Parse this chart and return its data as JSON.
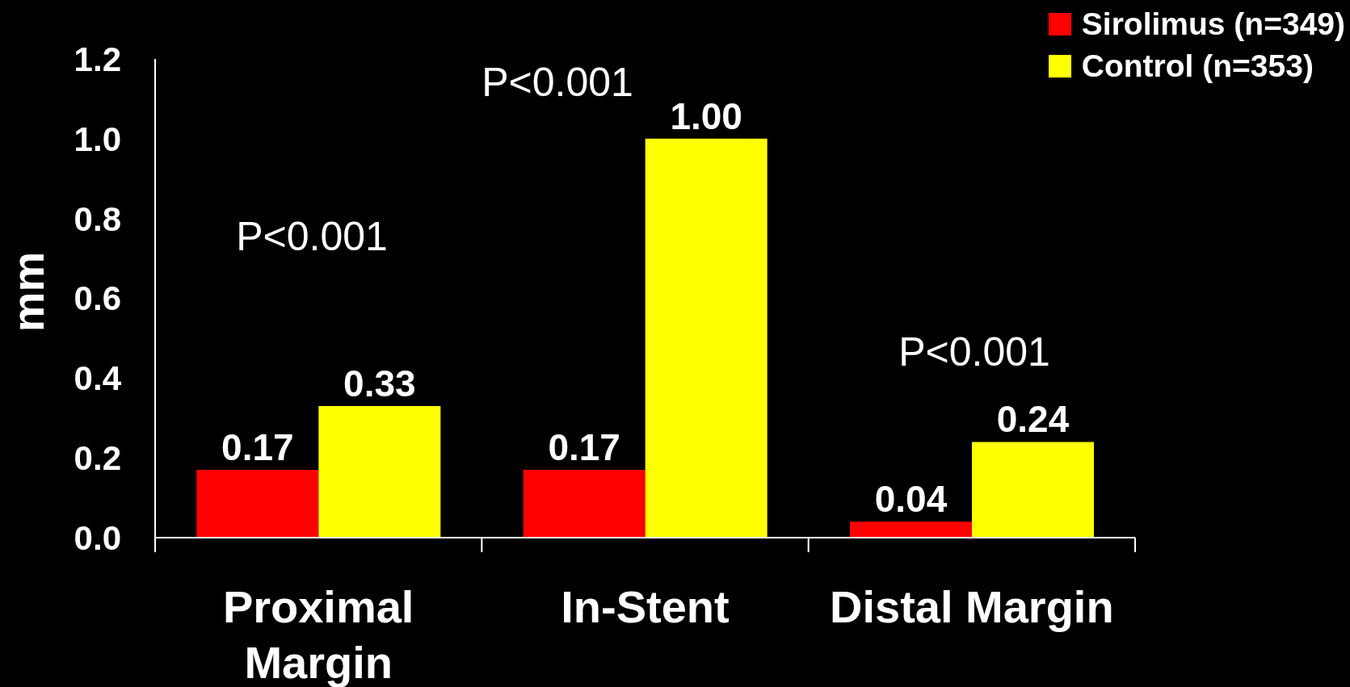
{
  "chart_data": {
    "type": "bar",
    "ylabel": "mm",
    "categories": [
      "Proximal Margin",
      "In-Stent",
      "Distal Margin"
    ],
    "series": [
      {
        "name": "Sirolimus (n=349)",
        "color": "#ff0000",
        "values": [
          0.17,
          0.17,
          0.04
        ],
        "value_labels": [
          "0.17",
          "0.17",
          "0.04"
        ]
      },
      {
        "name": "Control (n=353)",
        "color": "#ffff00",
        "values": [
          0.33,
          1.0,
          0.24
        ],
        "value_labels": [
          "0.33",
          "1.00",
          "0.24"
        ]
      }
    ],
    "ylim": [
      0,
      1.2
    ],
    "yticks": [
      {
        "value": 0,
        "label": "0.0"
      },
      0.2,
      0.4,
      0.6,
      0.8,
      {
        "value": 1,
        "label": "1.0"
      },
      1.2
    ],
    "legend": "top right",
    "annotations": [
      "P<0.001",
      "P<0.001",
      "P<0.001"
    ]
  }
}
